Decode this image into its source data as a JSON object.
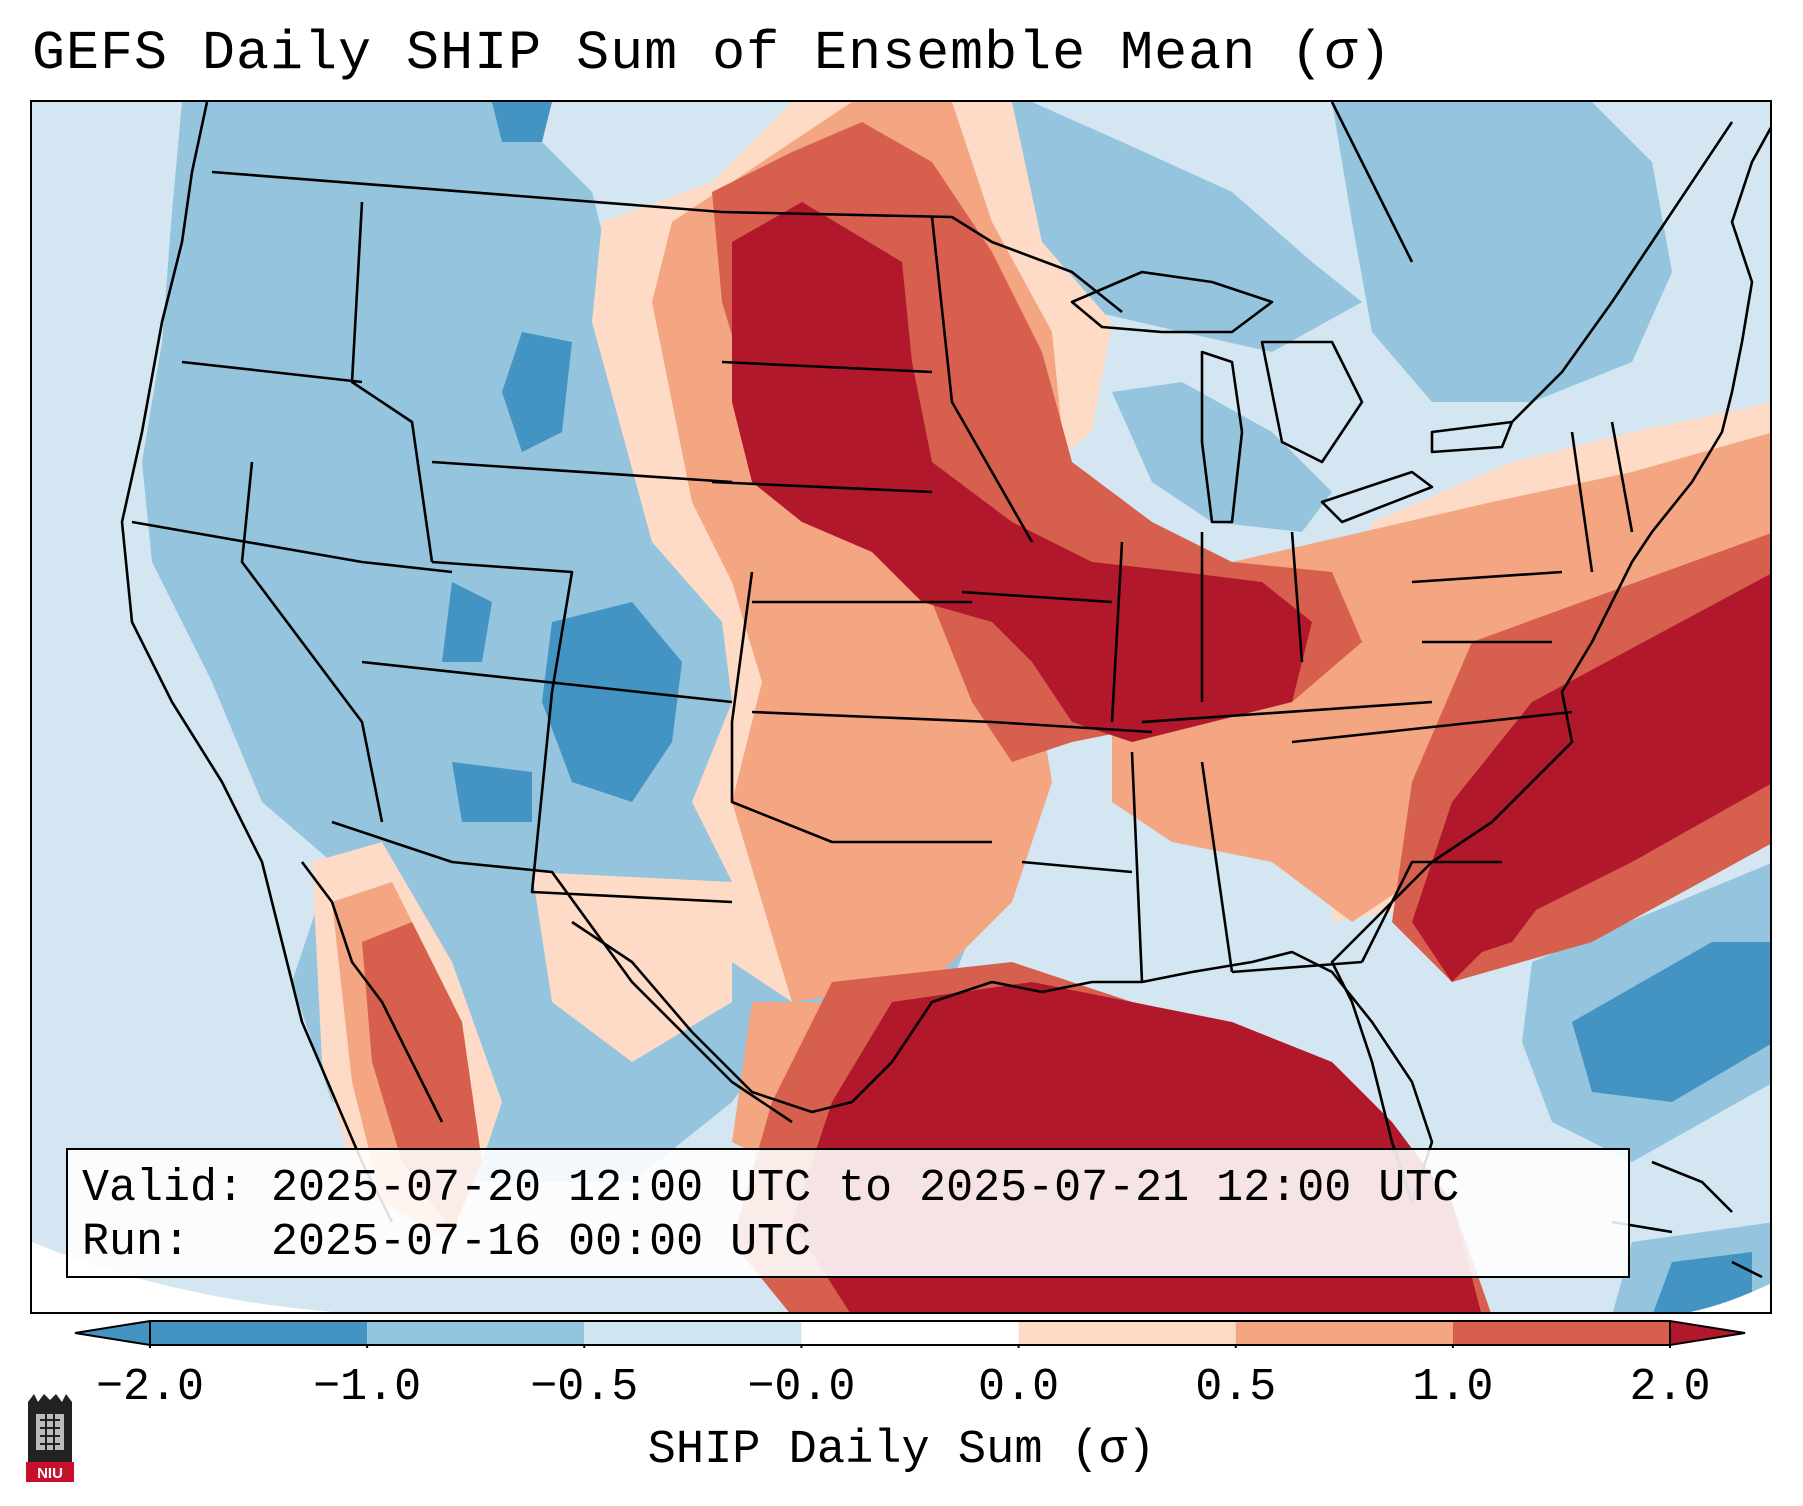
{
  "title": "GEFS Daily SHIP Sum of Ensemble Mean (σ)",
  "info": {
    "valid_line": "Valid: 2025-07-20 12:00 UTC to 2025-07-21 12:00 UTC",
    "run_line": "Run:   2025-07-16 00:00 UTC"
  },
  "colorbar": {
    "label": "SHIP Daily Sum (σ)",
    "ticks": [
      "−2.0",
      "−1.0",
      "−0.5",
      "−0.0",
      "0.0",
      "0.5",
      "1.0",
      "2.0"
    ],
    "colors": [
      "#4393c3",
      "#92c5de",
      "#d1e5f0",
      "#ffffff",
      "#fddbc7",
      "#f4a582",
      "#d6604d",
      "#b2182b"
    ],
    "extend": "both"
  },
  "logo": {
    "text": "NIU"
  },
  "map": {
    "region": "Contiguous United States, southern Canada, northern Mexico, Gulf of Mexico",
    "palette": {
      "strong_negative": "#4393c3",
      "negative": "#92c5de",
      "weak_negative": "#d1e5f0",
      "weak_positive": "#fddbc7",
      "positive": "#f4a582",
      "strong_positive": "#d6604d",
      "extreme_positive": "#b2182b",
      "outside": "#ffffff"
    }
  }
}
